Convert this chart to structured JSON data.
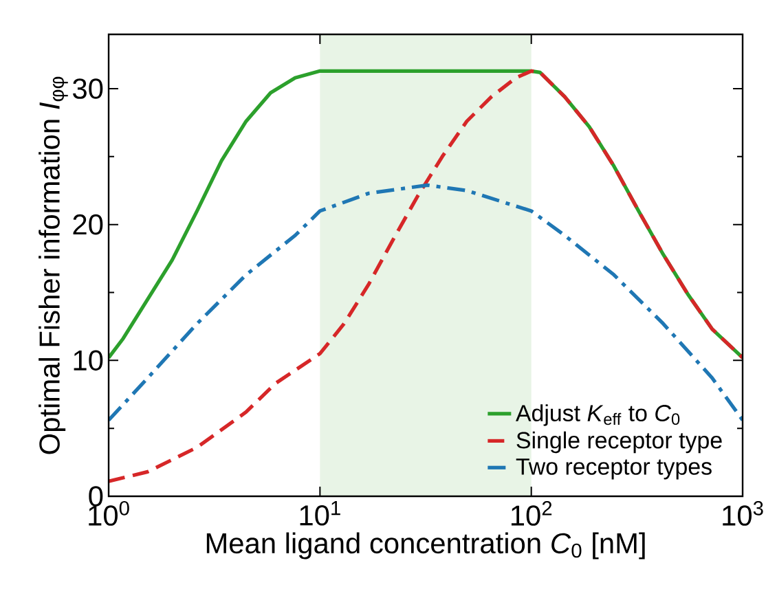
{
  "chart_data": {
    "type": "line",
    "xlabel": "Mean ligand concentration *C*$_{0}$ [nM]",
    "ylabel": "Optimal Fisher information *I*$_{φφ}$",
    "log": "x",
    "xlim": [
      1,
      1000
    ],
    "ylim": [
      0,
      34
    ],
    "xticks": [
      {
        "value": 1,
        "label": "10$^{0}$"
      },
      {
        "value": 10,
        "label": "10$^{1}$"
      },
      {
        "value": 100,
        "label": "10$^{2}$"
      },
      {
        "value": 1000,
        "label": "10$^{3}$"
      }
    ],
    "yticks": [
      0,
      10,
      20,
      30
    ],
    "grid": false,
    "legend": "bottom right",
    "bands": [
      {
        "axis": "x",
        "from": 10,
        "to": 100,
        "color": "#e8f4e6"
      }
    ],
    "series": [
      {
        "name": "Adjust *K*$_{eff}$ to *C*$_{0}$",
        "color": "#2ca02c",
        "line_style": "solid",
        "x": [
          1,
          1.17,
          1.53,
          2.0,
          2.62,
          3.42,
          4.47,
          5.84,
          7.63,
          10,
          100,
          110,
          144,
          188,
          246,
          322,
          421,
          549,
          718,
          1000
        ],
        "values": [
          10.2,
          11.6,
          14.5,
          17.4,
          21.0,
          24.7,
          27.6,
          29.7,
          30.8,
          31.3,
          31.3,
          31.2,
          29.4,
          27.2,
          24.3,
          21.0,
          17.8,
          14.9,
          12.3,
          10.2
        ]
      },
      {
        "name": "Single receptor type",
        "color": "#d62728",
        "line_style": "dashed",
        "x": [
          1,
          1.53,
          2.62,
          4.47,
          6.15,
          10,
          13.0,
          17.0,
          22.2,
          29.0,
          37.9,
          49.5,
          64.7,
          84.6,
          100,
          110,
          144,
          188,
          246,
          322,
          421,
          549,
          718,
          1000
        ],
        "values": [
          1.1,
          1.8,
          3.6,
          6.2,
          8.3,
          10.5,
          12.7,
          15.6,
          18.9,
          22.1,
          25.0,
          27.6,
          29.4,
          30.8,
          31.3,
          31.2,
          29.4,
          27.2,
          24.3,
          21.0,
          17.8,
          14.9,
          12.3,
          10.2
        ]
      },
      {
        "name": "Two receptor types",
        "color": "#1f77b4",
        "line_style": "dashdot",
        "x": [
          1,
          1.53,
          2.62,
          4.47,
          7.63,
          10,
          17.0,
          32.3,
          49.5,
          100,
          144,
          246,
          421,
          718,
          1000
        ],
        "values": [
          5.6,
          8.7,
          12.7,
          16.3,
          19.2,
          21.0,
          22.3,
          22.9,
          22.5,
          21.0,
          19.2,
          16.3,
          12.7,
          8.7,
          5.6
        ]
      }
    ]
  }
}
